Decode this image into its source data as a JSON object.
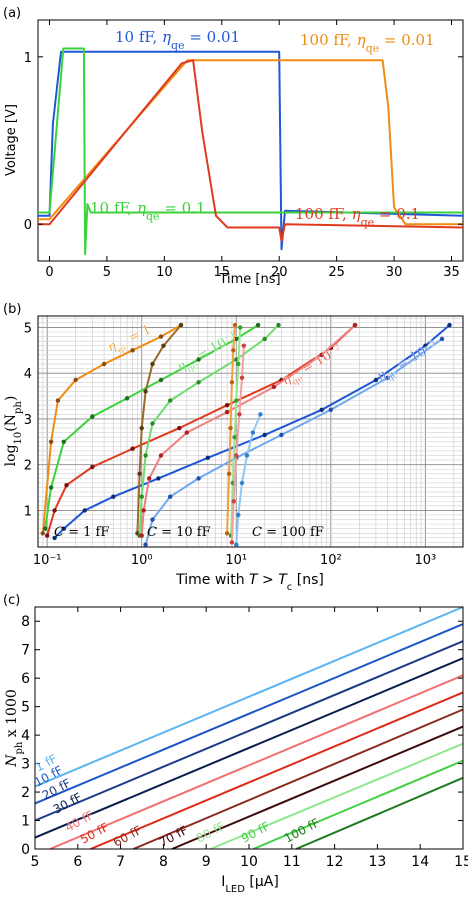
{
  "chart_data": [
    {
      "panel_label": "(a)",
      "type": "line",
      "xlabel": "Time [ns]",
      "ylabel": "Voltage [V]",
      "xlim": [
        -1,
        36
      ],
      "ylim": [
        -0.22,
        1.22
      ],
      "xticks": [
        "0",
        "5",
        "10",
        "15",
        "20",
        "25",
        "30",
        "35"
      ],
      "yticks": [
        "0",
        "1"
      ],
      "series": [
        {
          "name": "10 fF, ηqe = 0.01",
          "label_main": "10 fF, η",
          "label_sub": "qe",
          "label_tail": " = 0.01",
          "color": "#1f57d6",
          "x": [
            -1,
            0,
            0.3,
            1,
            20,
            20.2,
            20.5,
            36
          ],
          "y": [
            0.05,
            0.05,
            0.6,
            1.03,
            1.03,
            -0.15,
            0.08,
            0.05
          ]
        },
        {
          "name": "100 fF, ηqe = 0.01",
          "label_main": "100 fF, η",
          "label_sub": "qe",
          "label_tail": " = 0.01",
          "color": "#f08c10",
          "x": [
            -1,
            0,
            12,
            29,
            29.5,
            30,
            31,
            36
          ],
          "y": [
            0.03,
            0.03,
            0.98,
            0.98,
            0.7,
            0.1,
            0.0,
            0.0
          ]
        },
        {
          "name": "10 fF, ηqe = 0.1",
          "label_main": "10 fF, η",
          "label_sub": "qe",
          "label_tail": " = 0.1",
          "color": "#3cd23c",
          "x": [
            -1,
            0,
            1.2,
            3,
            3.1,
            3.3,
            3.6,
            36
          ],
          "y": [
            0.07,
            0.07,
            1.05,
            1.05,
            -0.18,
            0.12,
            0.07,
            0.07
          ]
        },
        {
          "name": "100 fF, ηqe = 0.1",
          "label_main": "100 fF, η",
          "label_sub": "qe",
          "label_tail": " = 0.1",
          "color": "#e03a1e",
          "x": [
            -1,
            0,
            11.5,
            12.5,
            13.3,
            14.5,
            15.5,
            20,
            20.2,
            20.5,
            36
          ],
          "y": [
            0.0,
            0.0,
            0.96,
            0.98,
            0.55,
            0.05,
            -0.02,
            -0.02,
            -0.1,
            0.0,
            -0.02
          ]
        }
      ]
    },
    {
      "panel_label": "(b)",
      "type": "scatter",
      "xlabel": "Time with",
      "xlabel_T": "T",
      "xlabel_gt": " > ",
      "xlabel_Tc": "T",
      "xlabel_c": "c",
      "xlabel_unit": " [ns]",
      "ylabel": "log",
      "ylabel_sub": "10",
      "ylabel_N": "(N",
      "ylabel_ph": "ph",
      "ylabel_close": ")",
      "xscale": "log",
      "xlim": [
        0.08,
        2500
      ],
      "ylim": [
        0.2,
        5.25
      ],
      "xticks": [
        "10⁻¹",
        "10⁰",
        "10¹",
        "10²",
        "10³"
      ],
      "yticks": [
        "1",
        "2",
        "3",
        "4",
        "5"
      ],
      "annotations": [
        {
          "text": "η",
          "sub": "qe",
          "tail": " = 1",
          "color": "#f08c10"
        },
        {
          "text": "η",
          "sub": "qe",
          "tail": " = 10⁻¹",
          "color": "#3cd23c"
        },
        {
          "text": "η",
          "sub": "qe",
          "tail": " = 10⁻²",
          "color": "#e03a1e"
        },
        {
          "text": "η",
          "sub": "qe",
          "tail": " = 10⁻³",
          "color": "#1f57d6"
        },
        {
          "text": "C",
          "tail": " = 1 fF",
          "color": "#000000"
        },
        {
          "text": "C",
          "tail": " = 10 fF",
          "color": "#000000"
        },
        {
          "text": "C",
          "tail": " = 100 fF",
          "color": "#000000"
        }
      ],
      "series": [
        {
          "name": "1fF ηqe=1",
          "color": "#f08c10",
          "marker": "#8b4a10",
          "x": [
            0.09,
            0.11,
            0.13,
            0.2,
            0.4,
            0.8,
            1.6,
            2.6
          ],
          "y": [
            0.5,
            2.5,
            3.4,
            3.85,
            4.2,
            4.5,
            4.8,
            5.05
          ]
        },
        {
          "name": "1fF ηqe=0.1",
          "color": "#3cd23c",
          "marker": "#1e6b1e",
          "x": [
            0.095,
            0.11,
            0.15,
            0.3,
            0.7,
            1.6,
            4,
            10,
            17
          ],
          "y": [
            0.6,
            1.5,
            2.5,
            3.05,
            3.45,
            3.85,
            4.3,
            4.75,
            5.05
          ]
        },
        {
          "name": "1fF ηqe=0.01",
          "color": "#e03a1e",
          "marker": "#7a1010",
          "x": [
            0.1,
            0.12,
            0.16,
            0.3,
            0.8,
            2.5,
            8,
            30,
            100,
            180
          ],
          "y": [
            0.45,
            1.0,
            1.55,
            1.95,
            2.35,
            2.8,
            3.3,
            3.85,
            4.55,
            5.05
          ]
        },
        {
          "name": "1fF ηqe=0.001",
          "color": "#1f57d6",
          "marker": "#0c2c7a",
          "x": [
            0.12,
            0.15,
            0.25,
            0.5,
            1.5,
            5,
            20,
            80,
            300,
            1000,
            1800
          ],
          "y": [
            0.4,
            0.6,
            1.0,
            1.3,
            1.7,
            2.15,
            2.65,
            3.2,
            3.85,
            4.6,
            5.05
          ]
        },
        {
          "name": "10fF ηqe=1",
          "color": "#9a6a2a",
          "marker": "#5a3a10",
          "x": [
            0.9,
            0.95,
            1.0,
            1.1,
            1.3,
            1.7,
            2.6
          ],
          "y": [
            0.5,
            1.8,
            2.8,
            3.6,
            4.2,
            4.6,
            5.05
          ]
        },
        {
          "name": "10fF ηqe=0.1",
          "color": "#6fdc6f",
          "marker": "#2a8a2a",
          "x": [
            0.95,
            1.0,
            1.1,
            1.3,
            2,
            4,
            10,
            20,
            28
          ],
          "y": [
            0.45,
            1.3,
            2.2,
            2.9,
            3.4,
            3.8,
            4.3,
            4.75,
            5.05
          ]
        },
        {
          "name": "10fF ηqe=0.01",
          "color": "#f08080",
          "marker": "#b02020",
          "x": [
            1.0,
            1.05,
            1.2,
            1.6,
            3,
            8,
            25,
            80,
            180
          ],
          "y": [
            0.45,
            1.0,
            1.7,
            2.2,
            2.7,
            3.15,
            3.7,
            4.4,
            5.05
          ]
        },
        {
          "name": "10fF ηqe=0.001",
          "color": "#6fa8f0",
          "marker": "#1f4fb0",
          "x": [
            1.1,
            1.3,
            2,
            4,
            10,
            30,
            100,
            400,
            1500
          ],
          "y": [
            0.25,
            0.8,
            1.3,
            1.7,
            2.15,
            2.65,
            3.2,
            3.9,
            4.75
          ]
        },
        {
          "name": "100fF ηqe=1",
          "color": "#f0a040",
          "marker": "#c06010",
          "x": [
            8,
            8.4,
            8.7,
            9,
            9.3,
            9.7
          ],
          "y": [
            0.5,
            1.8,
            2.8,
            3.8,
            4.5,
            5.05
          ]
        },
        {
          "name": "100fF ηqe=0.1",
          "color": "#90e890",
          "marker": "#30a030",
          "x": [
            8.8,
            9.2,
            9.6,
            10,
            10.5,
            11
          ],
          "y": [
            0.45,
            1.6,
            2.6,
            3.4,
            4.2,
            5.0
          ]
        },
        {
          "name": "100fF ηqe=0.01",
          "color": "#f4a0a0",
          "marker": "#d04040",
          "x": [
            9,
            9.4,
            10,
            10.8,
            11.5,
            12
          ],
          "y": [
            0.3,
            1.2,
            2.2,
            3.1,
            3.9,
            4.6
          ]
        },
        {
          "name": "100fF ηqe=0.001",
          "color": "#8fc8f4",
          "marker": "#3080d0",
          "x": [
            10,
            10.5,
            11.5,
            13,
            15,
            18
          ],
          "y": [
            0.25,
            0.9,
            1.6,
            2.2,
            2.7,
            3.1
          ]
        }
      ]
    },
    {
      "panel_label": "(c)",
      "type": "line",
      "xlabel": "I",
      "xlabel_sub": "LED",
      "xlabel_unit": " [μA]",
      "ylabel": "N",
      "ylabel_sub": "ph",
      "ylabel_tail": " x 1000",
      "xlim": [
        5,
        15
      ],
      "ylim": [
        0,
        8.5
      ],
      "xticks": [
        "5",
        "6",
        "7",
        "8",
        "9",
        "10",
        "11",
        "12",
        "13",
        "14",
        "15"
      ],
      "yticks": [
        "0",
        "1",
        "2",
        "3",
        "4",
        "5",
        "6",
        "7",
        "8"
      ],
      "series": [
        {
          "name": "1 fF",
          "color": "#5ab4f0",
          "x": [
            5,
            15
          ],
          "y": [
            2.2,
            8.5
          ]
        },
        {
          "name": "10 fF",
          "color": "#1c56c8",
          "x": [
            5,
            15
          ],
          "y": [
            1.6,
            7.9
          ]
        },
        {
          "name": "20 fF",
          "color": "#1c3a88",
          "x": [
            5,
            15
          ],
          "y": [
            1.0,
            7.3
          ]
        },
        {
          "name": "30 fF",
          "color": "#0a1e4e",
          "x": [
            5,
            15
          ],
          "y": [
            0.4,
            6.7
          ]
        },
        {
          "name": "40 fF",
          "color": "#f27070",
          "x": [
            5.35,
            15
          ],
          "y": [
            0,
            6.1
          ]
        },
        {
          "name": "50 fF",
          "color": "#e02a18",
          "x": [
            6.3,
            15
          ],
          "y": [
            0,
            5.5
          ]
        },
        {
          "name": "60 fF",
          "color": "#8c2a1e",
          "x": [
            7.3,
            15
          ],
          "y": [
            0,
            4.9
          ]
        },
        {
          "name": "70 fF",
          "color": "#3e0a0a",
          "x": [
            8.2,
            15
          ],
          "y": [
            0,
            4.3
          ]
        },
        {
          "name": "80 fF",
          "color": "#8ee88e",
          "x": [
            9.1,
            15
          ],
          "y": [
            0,
            3.7
          ]
        },
        {
          "name": "90 fF",
          "color": "#44d044",
          "x": [
            10.1,
            15
          ],
          "y": [
            0,
            3.1
          ]
        },
        {
          "name": "100 fF",
          "color": "#1e7a1e",
          "x": [
            11.1,
            15
          ],
          "y": [
            0,
            2.5
          ]
        }
      ]
    }
  ]
}
